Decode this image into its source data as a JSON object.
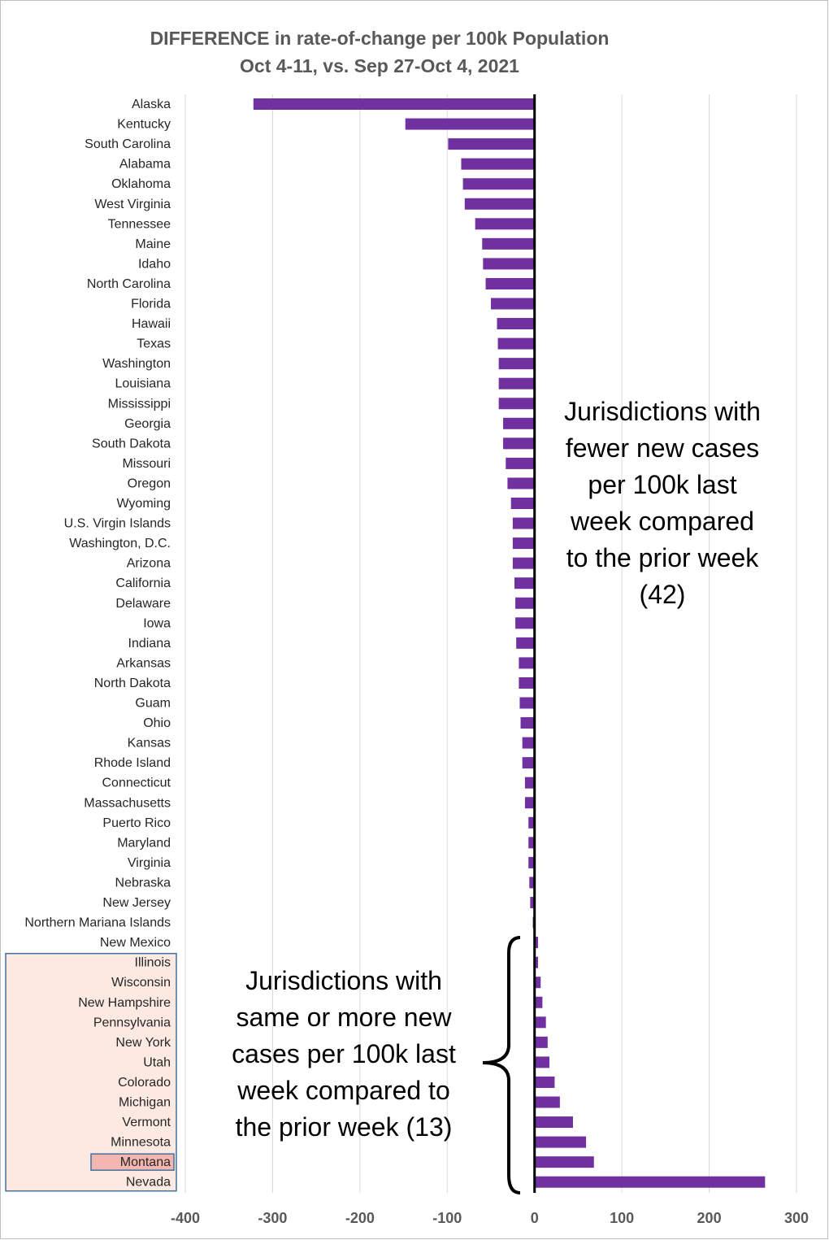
{
  "chart_data": {
    "type": "bar",
    "orientation": "horizontal",
    "title": "DIFFERENCE in rate-of-change per 100k Population",
    "subtitle": "Oct 4-11, vs. Sep 27-Oct 4, 2021",
    "xlim": [
      -400,
      300
    ],
    "x_ticks": [
      "-400",
      "-300",
      "-200",
      "-100",
      "0",
      "100",
      "200",
      "300"
    ],
    "x_tick_values": [
      -400,
      -300,
      -200,
      -100,
      0,
      100,
      200,
      300
    ],
    "grid": true,
    "bar_color": "#7030a0",
    "categories": [
      "Alaska",
      "Kentucky",
      "South Carolina",
      "Alabama",
      "Oklahoma",
      "West Virginia",
      "Tennessee",
      "Maine",
      "Idaho",
      "North Carolina",
      "Florida",
      "Hawaii",
      "Texas",
      "Washington",
      "Louisiana",
      "Mississippi",
      "Georgia",
      "South Dakota",
      "Missouri",
      "Oregon",
      "Wyoming",
      "U.S. Virgin Islands",
      "Washington, D.C.",
      "Arizona",
      "California",
      "Delaware",
      "Iowa",
      "Indiana",
      "Arkansas",
      "North Dakota",
      "Guam",
      "Ohio",
      "Kansas",
      "Rhode Island",
      "Connecticut",
      "Massachusetts",
      "Puerto Rico",
      "Maryland",
      "Virginia",
      "Nebraska",
      "New Jersey",
      "Northern Mariana Islands",
      "New Mexico",
      "Illinois",
      "Wisconsin",
      "New Hampshire",
      "Pennsylvania",
      "New York",
      "Utah",
      "Colorado",
      "Michigan",
      "Vermont",
      "Minnesota",
      "Montana",
      "Nevada"
    ],
    "values": [
      -322,
      -148,
      -99,
      -84,
      -82,
      -80,
      -68,
      -60,
      -59,
      -56,
      -50,
      -43,
      -42,
      -41,
      -41,
      -41,
      -36,
      -36,
      -33,
      -31,
      -27,
      -25,
      -25,
      -25,
      -23,
      -22,
      -22,
      -21,
      -18,
      -18,
      -17,
      -16,
      -14,
      -14,
      -11,
      -11,
      -7,
      -7,
      -7,
      -6,
      -5,
      -2,
      4,
      4,
      7,
      9,
      13,
      15,
      17,
      23,
      29,
      44,
      59,
      68,
      264
    ],
    "highlighted_group": [
      "Illinois",
      "Wisconsin",
      "New Hampshire",
      "Pennsylvania",
      "New York",
      "Utah",
      "Colorado",
      "Michigan",
      "Vermont",
      "Minnesota",
      "Montana",
      "Nevada"
    ],
    "highlighted_single": "Montana",
    "annotations": {
      "fewer": [
        "Jurisdictions with",
        "fewer new cases",
        "per 100k last",
        "week compared",
        "to the prior week",
        "(42)"
      ],
      "more": [
        "Jurisdictions with",
        "same or more new",
        "cases per 100k last",
        "week compared to",
        "the prior week (13)"
      ]
    }
  }
}
